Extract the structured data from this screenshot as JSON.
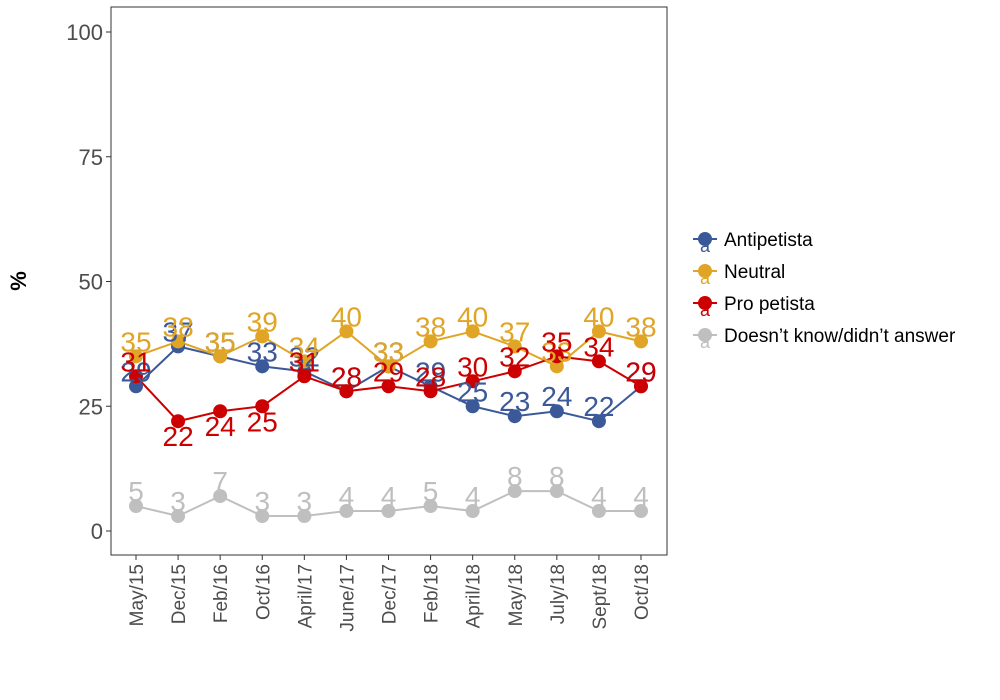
{
  "chart_data": {
    "type": "line",
    "ylabel": "%",
    "xlabel": "",
    "ylim": [
      0,
      100
    ],
    "yticks": [
      0,
      25,
      50,
      75,
      100
    ],
    "categories": [
      "May/15",
      "Dec/15",
      "Feb/16",
      "Oct/16",
      "April/17",
      "June/17",
      "Dec/17",
      "Feb/18",
      "April/18",
      "May/18",
      "July/18",
      "Sept/18",
      "Oct/18"
    ],
    "legend_position": "right",
    "grid": false,
    "series": [
      {
        "name": "Antipetista",
        "color": "#3b5998",
        "values": [
          29,
          37,
          35,
          33,
          32,
          28,
          33,
          29,
          25,
          23,
          24,
          22,
          29
        ]
      },
      {
        "name": "Neutral",
        "color": "#e0a526",
        "values": [
          35,
          38,
          35,
          39,
          34,
          40,
          33,
          38,
          40,
          37,
          33,
          40,
          38
        ]
      },
      {
        "name": "Pro petista",
        "color": "#cc0000",
        "values": [
          31,
          22,
          24,
          25,
          31,
          28,
          29,
          28,
          30,
          32,
          35,
          34,
          29
        ]
      },
      {
        "name": "Doesn’t know/didn’t answer",
        "color": "#bfbfbf",
        "values": [
          5,
          3,
          7,
          3,
          3,
          4,
          4,
          5,
          4,
          8,
          8,
          4,
          4
        ]
      }
    ],
    "legend_key_glyph": "a"
  }
}
